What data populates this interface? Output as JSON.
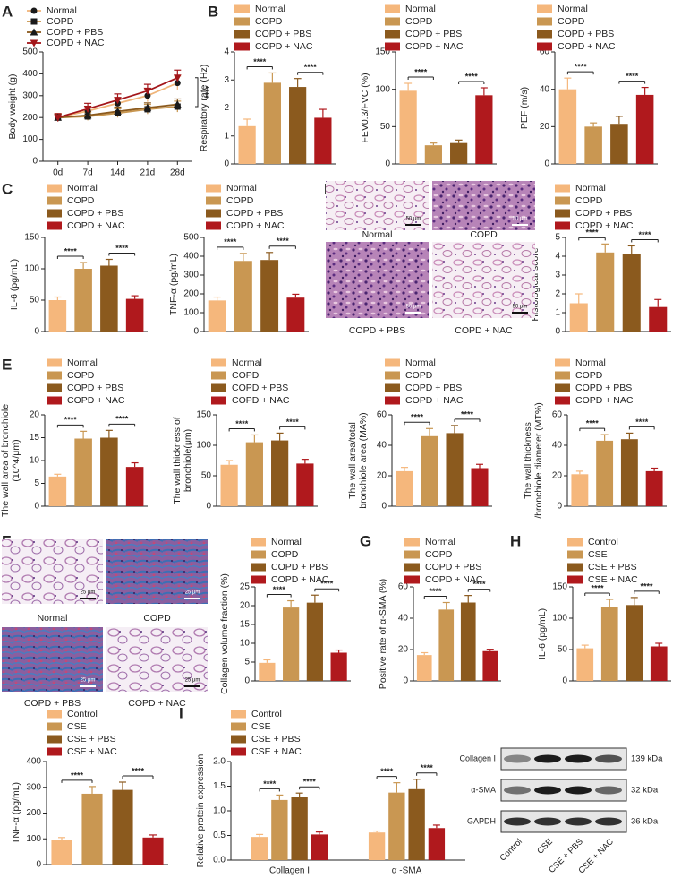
{
  "chart_data": [
    {
      "type": "line",
      "panel": "A",
      "ylabel": "Body weight (g)",
      "categories": [
        "0d",
        "7d",
        "14d",
        "21d",
        "28d"
      ],
      "series": [
        {
          "name": "Normal",
          "color": "#f0b57a",
          "marker": "circle",
          "values": [
            200,
            230,
            265,
            300,
            358
          ],
          "errors": [
            18,
            22,
            25,
            28,
            32
          ]
        },
        {
          "name": "COPD",
          "color": "#c8964f",
          "marker": "square",
          "values": [
            200,
            205,
            220,
            238,
            250
          ],
          "errors": [
            15,
            18,
            20,
            22,
            25
          ]
        },
        {
          "name": "COPD + PBS",
          "color": "#8b5a1e",
          "marker": "triangle",
          "values": [
            200,
            210,
            228,
            245,
            260
          ],
          "errors": [
            15,
            18,
            20,
            22,
            25
          ]
        },
        {
          "name": "COPD + NAC",
          "color": "#a3161a",
          "marker": "triangle-down",
          "values": [
            200,
            240,
            280,
            322,
            382
          ],
          "errors": [
            18,
            25,
            28,
            30,
            35
          ]
        }
      ],
      "ylim": [
        0,
        500
      ],
      "yticks": [
        0,
        100,
        200,
        300,
        400,
        500
      ],
      "significance": [
        "****"
      ]
    },
    {
      "type": "bar",
      "panel": "B",
      "ylabel": "Respiratory rate (Hz)",
      "categories": [
        "Normal",
        "COPD",
        "COPD + PBS",
        "COPD + NAC"
      ],
      "colors": [
        "#f5b77c",
        "#c99752",
        "#8b5a1e",
        "#b0191d"
      ],
      "values": [
        1.35,
        2.9,
        2.75,
        1.65
      ],
      "errors": [
        0.25,
        0.35,
        0.3,
        0.3
      ],
      "ylim": [
        0,
        4
      ],
      "yticks": [
        0,
        1,
        2,
        3,
        4
      ],
      "significance": [
        "****",
        "****"
      ]
    },
    {
      "type": "bar",
      "ylabel": "FEV0.3/FVC (%)",
      "categories": [
        "Normal",
        "COPD",
        "COPD + PBS",
        "COPD + NAC"
      ],
      "colors": [
        "#f5b77c",
        "#c99752",
        "#8b5a1e",
        "#b0191d"
      ],
      "values": [
        98,
        25,
        28,
        92
      ],
      "errors": [
        10,
        3,
        4,
        10
      ],
      "ylim": [
        0,
        150
      ],
      "yticks": [
        0,
        50,
        100,
        150
      ],
      "significance": [
        "****",
        "****"
      ]
    },
    {
      "type": "bar",
      "ylabel": "PEF (m/s)",
      "categories": [
        "Normal",
        "COPD",
        "COPD + PBS",
        "COPD + NAC"
      ],
      "colors": [
        "#f5b77c",
        "#c99752",
        "#8b5a1e",
        "#b0191d"
      ],
      "values": [
        40,
        20,
        21.5,
        37
      ],
      "errors": [
        6,
        2,
        4,
        4
      ],
      "ylim": [
        0,
        60
      ],
      "yticks": [
        0,
        20,
        40,
        60
      ],
      "significance": [
        "****",
        "****"
      ]
    },
    {
      "type": "bar",
      "panel": "C",
      "ylabel": "IL-6 (pg/mL)",
      "categories": [
        "Normal",
        "COPD",
        "COPD + PBS",
        "COPD + NAC"
      ],
      "colors": [
        "#f5b77c",
        "#c99752",
        "#8b5a1e",
        "#b0191d"
      ],
      "values": [
        50,
        100,
        105,
        52
      ],
      "errors": [
        5,
        10,
        10,
        5
      ],
      "ylim": [
        0,
        150
      ],
      "yticks": [
        0,
        50,
        100,
        150
      ],
      "significance": [
        "****",
        "****"
      ]
    },
    {
      "type": "bar",
      "ylabel": "TNF-α (pg/mL)",
      "categories": [
        "Normal",
        "COPD",
        "COPD + PBS",
        "COPD + NAC"
      ],
      "colors": [
        "#f5b77c",
        "#c99752",
        "#8b5a1e",
        "#b0191d"
      ],
      "values": [
        165,
        375,
        380,
        180
      ],
      "errors": [
        18,
        40,
        40,
        18
      ],
      "ylim": [
        0,
        500
      ],
      "yticks": [
        0,
        100,
        200,
        300,
        400,
        500
      ],
      "significance": [
        "****",
        "****"
      ]
    },
    {
      "type": "bar",
      "panel": "D",
      "ylabel": "Histological score",
      "categories": [
        "Normal",
        "COPD",
        "COPD + PBS",
        "COPD + NAC"
      ],
      "colors": [
        "#f5b77c",
        "#c99752",
        "#8b5a1e",
        "#b0191d"
      ],
      "values": [
        1.5,
        4.2,
        4.1,
        1.3
      ],
      "errors": [
        0.5,
        0.45,
        0.45,
        0.4
      ],
      "ylim": [
        0,
        5
      ],
      "yticks": [
        0,
        1,
        2,
        3,
        4,
        5
      ],
      "significance": [
        "****",
        "****"
      ]
    },
    {
      "type": "bar",
      "panel": "E",
      "ylabel": [
        "The wall area of bronchiole",
        "(10^4/μm)"
      ],
      "categories": [
        "Normal",
        "COPD",
        "COPD + PBS",
        "COPD + NAC"
      ],
      "colors": [
        "#f5b77c",
        "#c99752",
        "#8b5a1e",
        "#b0191d"
      ],
      "values": [
        6.5,
        14.8,
        15,
        8.6
      ],
      "errors": [
        0.5,
        1.6,
        1.6,
        0.9
      ],
      "ylim": [
        0,
        20
      ],
      "yticks": [
        0,
        5,
        10,
        15,
        20
      ],
      "significance": [
        "****",
        "****"
      ]
    },
    {
      "type": "bar",
      "ylabel": [
        "The wall thickness of",
        "bronchiole(μm)"
      ],
      "categories": [
        "Normal",
        "COPD",
        "COPD + PBS",
        "COPD + NAC"
      ],
      "colors": [
        "#f5b77c",
        "#c99752",
        "#8b5a1e",
        "#b0191d"
      ],
      "values": [
        68,
        105,
        108,
        70
      ],
      "errors": [
        7,
        12,
        12,
        7
      ],
      "ylim": [
        0,
        150
      ],
      "yticks": [
        0,
        50,
        100,
        150
      ],
      "significance": [
        "****",
        "****"
      ]
    },
    {
      "type": "bar",
      "ylabel": [
        "The wall area/total",
        "bronchiole area (MA%)"
      ],
      "categories": [
        "Normal",
        "COPD",
        "COPD + PBS",
        "COPD + NAC"
      ],
      "colors": [
        "#f5b77c",
        "#c99752",
        "#8b5a1e",
        "#b0191d"
      ],
      "values": [
        23,
        46,
        48,
        25
      ],
      "errors": [
        2.5,
        5,
        5,
        2.5
      ],
      "ylim": [
        0,
        60
      ],
      "yticks": [
        0,
        20,
        40,
        60
      ],
      "significance": [
        "****",
        "****"
      ]
    },
    {
      "type": "bar",
      "ylabel": [
        "The wall thickness",
        "/bronchiole diameter (MT%)"
      ],
      "categories": [
        "Normal",
        "COPD",
        "COPD + PBS",
        "COPD + NAC"
      ],
      "colors": [
        "#f5b77c",
        "#c99752",
        "#8b5a1e",
        "#b0191d"
      ],
      "values": [
        21,
        43,
        44,
        23
      ],
      "errors": [
        2,
        4,
        4,
        2
      ],
      "ylim": [
        0,
        60
      ],
      "yticks": [
        0,
        20,
        40,
        60
      ],
      "significance": [
        "****",
        "****"
      ]
    },
    {
      "type": "bar",
      "panel": "F",
      "ylabel": "Collagen volume fraction (%)",
      "categories": [
        "Normal",
        "COPD",
        "COPD + PBS",
        "COPD + NAC"
      ],
      "colors": [
        "#f5b77c",
        "#c99752",
        "#8b5a1e",
        "#b0191d"
      ],
      "values": [
        4.8,
        19.5,
        20.8,
        7.5
      ],
      "errors": [
        0.8,
        1.8,
        2,
        0.7
      ],
      "ylim": [
        0,
        25
      ],
      "yticks": [
        0,
        5,
        10,
        15,
        20,
        25
      ],
      "significance": [
        "****",
        "****"
      ]
    },
    {
      "type": "bar",
      "panel": "G",
      "ylabel": "Positive rate of α-SMA (%)",
      "categories": [
        "Normal",
        "COPD",
        "COPD + PBS",
        "COPD + NAC"
      ],
      "colors": [
        "#f5b77c",
        "#c99752",
        "#8b5a1e",
        "#b0191d"
      ],
      "values": [
        16.5,
        45.5,
        50,
        19
      ],
      "errors": [
        1.5,
        4.5,
        4.5,
        1.2
      ],
      "ylim": [
        0,
        60
      ],
      "yticks": [
        0,
        20,
        40,
        60
      ],
      "significance": [
        "****",
        "****"
      ]
    },
    {
      "type": "bar",
      "panel": "H",
      "ylabel": "IL-6 (pg/mL)",
      "categories": [
        "Control",
        "CSE",
        "CSE + PBS",
        "CSE + NAC"
      ],
      "colors": [
        "#f5b77c",
        "#c99752",
        "#8b5a1e",
        "#b0191d"
      ],
      "values": [
        52,
        118,
        121,
        55
      ],
      "errors": [
        5,
        12,
        12,
        5
      ],
      "ylim": [
        0,
        150
      ],
      "yticks": [
        0,
        50,
        100,
        150
      ],
      "significance": [
        "****",
        "****"
      ]
    },
    {
      "type": "bar",
      "ylabel": "TNF-α (pg/mL)",
      "categories": [
        "Control",
        "CSE",
        "CSE + PBS",
        "CSE + NAC"
      ],
      "colors": [
        "#f5b77c",
        "#c99752",
        "#8b5a1e",
        "#b0191d"
      ],
      "values": [
        95,
        275,
        290,
        105
      ],
      "errors": [
        10,
        28,
        30,
        10
      ],
      "ylim": [
        0,
        400
      ],
      "yticks": [
        0,
        100,
        200,
        300,
        400
      ],
      "significance": [
        "****",
        "****"
      ]
    },
    {
      "type": "grouped_bar",
      "panel": "I",
      "ylabel": "Relative protein expression",
      "categories": [
        "Collagen I",
        "α -SMA"
      ],
      "series": [
        {
          "name": "Control",
          "color": "#f5b77c",
          "values": [
            0.47,
            0.56
          ],
          "errors": [
            0.05,
            0.03
          ]
        },
        {
          "name": "CSE",
          "color": "#c99752",
          "values": [
            1.22,
            1.37
          ],
          "errors": [
            0.1,
            0.2
          ]
        },
        {
          "name": "CSE + PBS",
          "color": "#8b5a1e",
          "values": [
            1.28,
            1.44
          ],
          "errors": [
            0.08,
            0.2
          ]
        },
        {
          "name": "CSE + NAC",
          "color": "#b0191d",
          "values": [
            0.52,
            0.65
          ],
          "errors": [
            0.05,
            0.06
          ]
        }
      ],
      "ylim": [
        0,
        2
      ],
      "yticks": [
        {
          "value": 0,
          "label": "0.0"
        },
        0.5,
        {
          "value": 1,
          "label": "1.0"
        },
        1.5,
        {
          "value": 2,
          "label": "2.0"
        }
      ],
      "significance": [
        "****",
        "****",
        "****",
        "****"
      ]
    }
  ],
  "micrographs": [
    {
      "captions": [
        "Normal",
        "COPD",
        "COPD + PBS",
        "COPD + NAC"
      ],
      "scale_bar": "50 μm"
    },
    {
      "captions": [
        "Normal",
        "COPD",
        "COPD + PBS",
        "COPD + NAC"
      ],
      "scale_bar": "25 μm"
    }
  ],
  "blot": {
    "rows": [
      "Collagen I",
      "α-SMA",
      "GAPDH"
    ],
    "sizes": [
      "139 kDa",
      "32 kDa",
      "36 kDa"
    ],
    "lanes": [
      "Control",
      "CSE",
      "CSE + PBS",
      "CSE + NAC"
    ]
  }
}
